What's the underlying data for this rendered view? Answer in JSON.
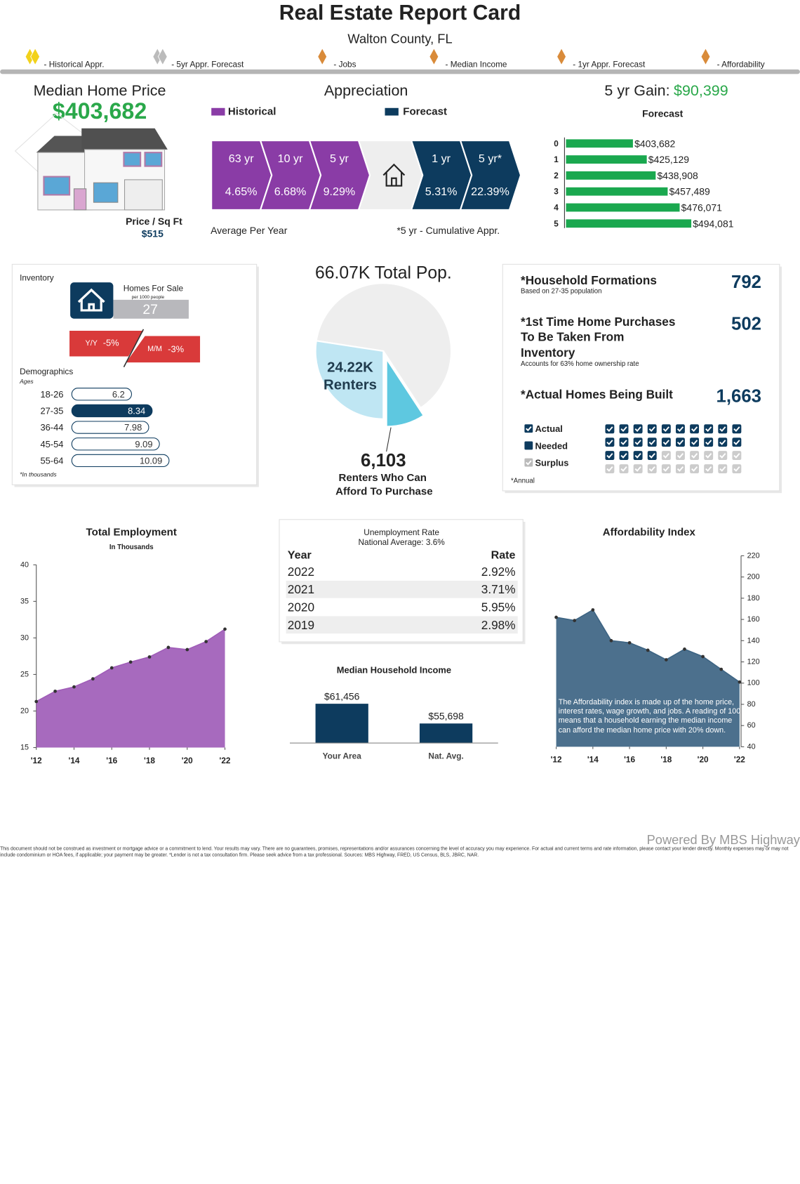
{
  "header": {
    "title": "Real Estate Report Card",
    "subtitle": "Walton County, FL"
  },
  "legend": [
    "- Historical Appr.",
    "- 5yr Appr. Forecast",
    "- Jobs",
    "- Median Income",
    "- 1yr Appr. Forecast",
    "- Affordability"
  ],
  "legend_colors": [
    "#f2d21b",
    "#bbbbbb",
    "#d98b3a",
    "#d98b3a",
    "#d98b3a",
    "#d98b3a"
  ],
  "median_price": {
    "title": "Median Home Price",
    "value": "$403,682",
    "sqft_label": "Price / Sq Ft",
    "sqft_value": "$515"
  },
  "appreciation": {
    "title": "Appreciation",
    "historical_label": "Historical",
    "forecast_label": "Forecast",
    "historical_color": "#8a3ca6",
    "forecast_color": "#0d3b5e",
    "periods": [
      "63 yr",
      "10 yr",
      "5 yr",
      "1 yr",
      "5 yr*"
    ],
    "rates": [
      "4.65%",
      "6.68%",
      "9.29%",
      "5.31%",
      "22.39%"
    ],
    "colors": [
      "#8a3ca6",
      "#8a3ca6",
      "#8a3ca6",
      "#0d3b5e",
      "#0d3b5e"
    ],
    "note_left": "Average Per Year",
    "note_right": "*5 yr - Cumulative Appr."
  },
  "forecast": {
    "type": "bar",
    "title": "5 yr Gain:",
    "gain": "$90,399",
    "subtitle": "Forecast",
    "categories": [
      "0",
      "1",
      "2",
      "3",
      "4",
      "5"
    ],
    "values": [
      403682,
      425129,
      438908,
      457489,
      476071,
      494081
    ],
    "value_labels": [
      "$403,682",
      "$425,129",
      "$438,908",
      "$457,489",
      "$476,071",
      "$494,081"
    ],
    "color": "#1aa84f",
    "xlim": [
      300000,
      520000
    ]
  },
  "inventory": {
    "title": "Inventory",
    "homes_label": "Homes For Sale",
    "per_label": "per 1000 people",
    "homes_value": "27",
    "yy_label": "Y/Y",
    "yy_value": "-5%",
    "mm_label": "M/M",
    "mm_value": "-3%"
  },
  "demographics": {
    "type": "bar",
    "title": "Demographics",
    "subtitle": "Ages",
    "categories": [
      "18-26",
      "27-35",
      "36-44",
      "45-54",
      "55-64"
    ],
    "values": [
      6.2,
      8.34,
      7.98,
      9.09,
      10.09
    ],
    "colors": [
      "#ffffff",
      "#0d3b5e",
      "#ffffff",
      "#ffffff",
      "#ffffff"
    ],
    "xlim": [
      0,
      11
    ],
    "note": "*In thousands"
  },
  "population": {
    "type": "pie",
    "title": "66.07K Total Pop.",
    "total": 66070,
    "renters": 24220,
    "afford": 6103,
    "renters_label": "24.22K",
    "renters_name": "Renters",
    "afford_label": "6,103",
    "afford_name": [
      "Renters Who Can",
      "Afford To Purchase"
    ],
    "colors": [
      "#eeeeee",
      "#bfe6f3",
      "#5ec8e0"
    ]
  },
  "household": {
    "items": [
      {
        "label": [
          "*Household Formations"
        ],
        "note": "Based on 27-35 population",
        "value": "792"
      },
      {
        "label": [
          "*1st Time Home Purchases",
          "To Be Taken From",
          "Inventory"
        ],
        "note": "Accounts for 63% home ownership rate",
        "value": "502"
      },
      {
        "label": [
          "*Actual Homes Being Built"
        ],
        "value": "1,663"
      }
    ],
    "legend": [
      "Actual",
      "Needed",
      "Surplus"
    ],
    "legend_colors": [
      "#0d3b5e",
      "#0d3b5e",
      "#bbbbbb"
    ],
    "note": "*Annual",
    "waffle": [
      24,
      16
    ],
    "waffle_colors": [
      "#0d3b5e",
      "#cccccc"
    ]
  },
  "employment": {
    "type": "area",
    "title": "Total Employment",
    "subtitle": "In Thousands",
    "x": [
      2012,
      2013,
      2014,
      2015,
      2016,
      2017,
      2018,
      2019,
      2020,
      2021,
      2022
    ],
    "values": [
      21.3,
      22.7,
      23.3,
      24.4,
      25.9,
      26.7,
      27.4,
      28.7,
      28.4,
      29.5,
      31.2
    ],
    "color": "#a05db8",
    "xlim": [
      2012,
      2022
    ],
    "xticks": [
      {
        "value": 2012,
        "label": "'12"
      },
      {
        "value": 2014,
        "label": "'14"
      },
      {
        "value": 2016,
        "label": "'16"
      },
      {
        "value": 2018,
        "label": "'18"
      },
      {
        "value": 2020,
        "label": "'20"
      },
      {
        "value": 2022,
        "label": "'22"
      }
    ],
    "ylim": [
      15,
      40
    ],
    "yticks": [
      15,
      20,
      25,
      30,
      35,
      40
    ]
  },
  "unemployment": {
    "title": "Unemployment Rate",
    "subtitle": "National Average: 3.6%",
    "columns": [
      "Year",
      "Rate"
    ],
    "rows": [
      [
        "2022",
        "2.92%"
      ],
      [
        "2021",
        "3.71%"
      ],
      [
        "2020",
        "5.95%"
      ],
      [
        "2019",
        "2.98%"
      ]
    ]
  },
  "income": {
    "type": "bar",
    "title": "Median Household Income",
    "categories": [
      "Your Area",
      "Nat. Avg."
    ],
    "values": [
      61456,
      55698
    ],
    "value_labels": [
      "$61,456",
      "$55,698"
    ],
    "color": "#0d3b5e",
    "ylim": [
      50000,
      70000
    ]
  },
  "affordability": {
    "type": "area",
    "title": "Affordability Index",
    "x": [
      2012,
      2013,
      2014,
      2015,
      2016,
      2017,
      2018,
      2019,
      2020,
      2021,
      2022
    ],
    "values": [
      162,
      159,
      169,
      140,
      138,
      131,
      122,
      132,
      125,
      113,
      101
    ],
    "color": "#3d6483",
    "xlim": [
      2012,
      2022
    ],
    "xticks": [
      {
        "value": 2012,
        "label": "'12"
      },
      {
        "value": 2014,
        "label": "'14"
      },
      {
        "value": 2016,
        "label": "'16"
      },
      {
        "value": 2018,
        "label": "'18"
      },
      {
        "value": 2020,
        "label": "'20"
      },
      {
        "value": 2022,
        "label": "'22"
      }
    ],
    "ylim": [
      40,
      220
    ],
    "yticks": [
      40,
      60,
      80,
      100,
      120,
      140,
      160,
      180,
      200,
      220
    ],
    "annotation": "The Affordability index is made up of the home price, interest rates, wage growth, and jobs. A reading of 100 means that a household earning the median income can afford the median home price with 20% down."
  },
  "footer": {
    "brand": "Powered By MBS Highway",
    "disclaimer": "This document should not be construed as investment or mortgage advice or a commitment to lend. Your results may vary. There are no guarantees, promises, representations and/or assurances concerning the level of accuracy you may experience. For actual and current terms and rate information, please contact your lender directly. Monthly expenses may or may not include condominium or HOA fees, if applicable; your payment may be greater. *Lender is not a tax consultation firm. Please seek advice from a tax professional. Sources: MBS Highway, FRED, US Census, BLS, JBRC, NAR."
  }
}
